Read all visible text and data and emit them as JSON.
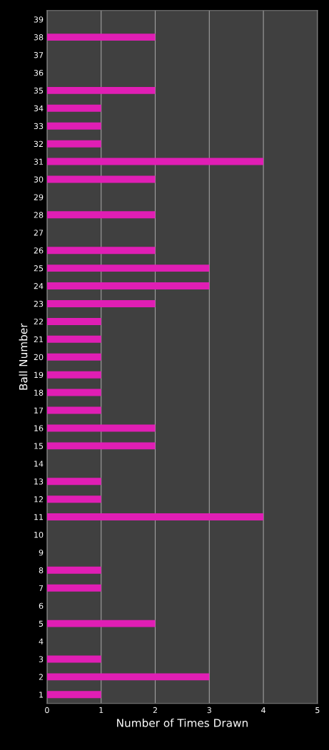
{
  "chart_data": {
    "type": "bar",
    "orientation": "horizontal",
    "xlabel": "Number of Times Drawn",
    "ylabel": "Ball Number",
    "categories": [
      "39",
      "38",
      "37",
      "36",
      "35",
      "34",
      "33",
      "32",
      "31",
      "30",
      "29",
      "28",
      "27",
      "26",
      "25",
      "24",
      "23",
      "22",
      "21",
      "20",
      "19",
      "18",
      "17",
      "16",
      "15",
      "14",
      "13",
      "12",
      "11",
      "10",
      "9",
      "8",
      "7",
      "6",
      "5",
      "4",
      "3",
      "2",
      "1"
    ],
    "values": [
      0,
      2,
      0,
      0,
      2,
      1,
      1,
      1,
      4,
      2,
      0,
      2,
      0,
      2,
      3,
      3,
      2,
      1,
      1,
      1,
      1,
      1,
      1,
      2,
      2,
      0,
      1,
      1,
      4,
      0,
      0,
      1,
      1,
      0,
      2,
      0,
      1,
      3,
      1
    ],
    "color": "#e01eb4",
    "xlim": [
      0,
      5
    ],
    "xticks": [
      0,
      1,
      2,
      3,
      4,
      5
    ],
    "grid": "x",
    "legend": false
  }
}
